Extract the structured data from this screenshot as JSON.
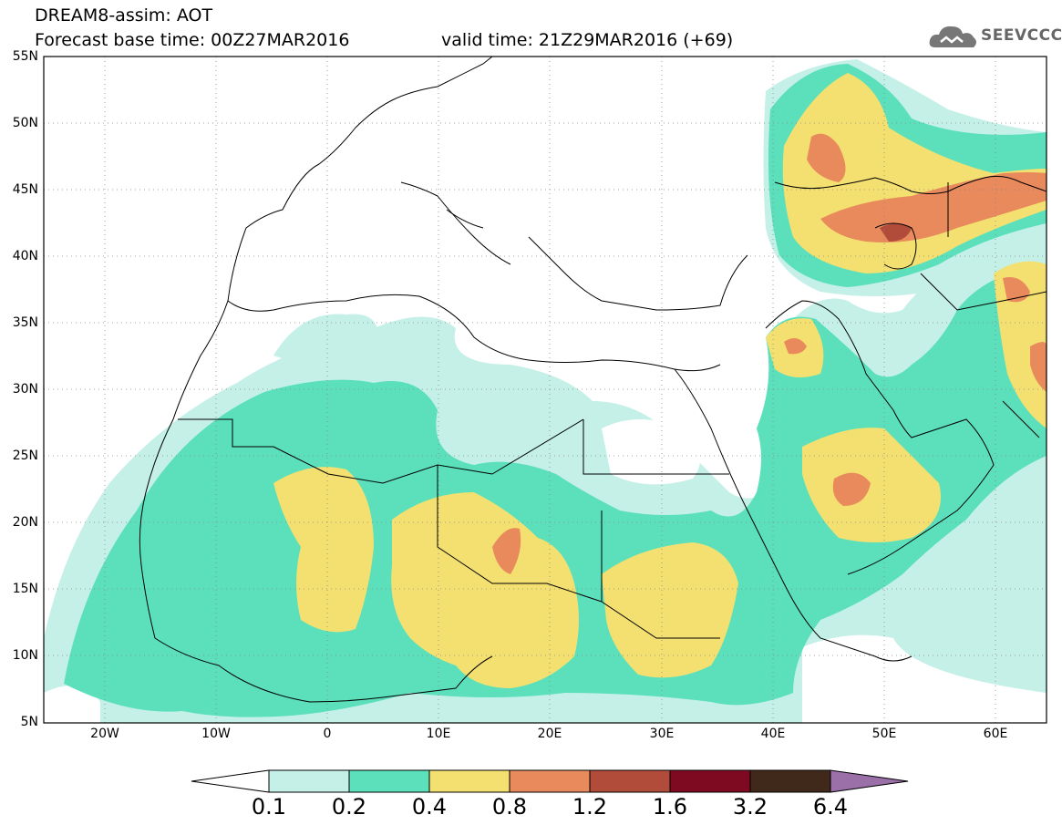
{
  "header": {
    "title_line": "DREAM8-assim: AOT",
    "forecast_line": "Forecast base time: 00Z27MAR2016",
    "valid_line": "valid time: 21Z29MAR2016 (+69)"
  },
  "logo": {
    "text": "SEEVCCC",
    "icon": "cloud-icon"
  },
  "map": {
    "lat_labels": [
      "55N",
      "50N",
      "45N",
      "40N",
      "35N",
      "30N",
      "25N",
      "20N",
      "15N",
      "10N",
      "5N"
    ],
    "lon_labels": [
      "20W",
      "10W",
      "0",
      "10E",
      "20E",
      "30E",
      "40E",
      "50E",
      "60E"
    ],
    "lat_range": [
      5,
      55
    ],
    "lon_range": [
      -25,
      65
    ],
    "grid": "dotted"
  },
  "colorbar": {
    "labels": [
      "0.1",
      "0.2",
      "0.4",
      "0.8",
      "1.2",
      "1.6",
      "3.2",
      "6.4"
    ],
    "colors": [
      "#ffffff",
      "#c4f0e8",
      "#5be0bb",
      "#f4e070",
      "#e88a5c",
      "#b24c3a",
      "#7e0a22",
      "#40281a",
      "#9b6fa8"
    ]
  }
}
